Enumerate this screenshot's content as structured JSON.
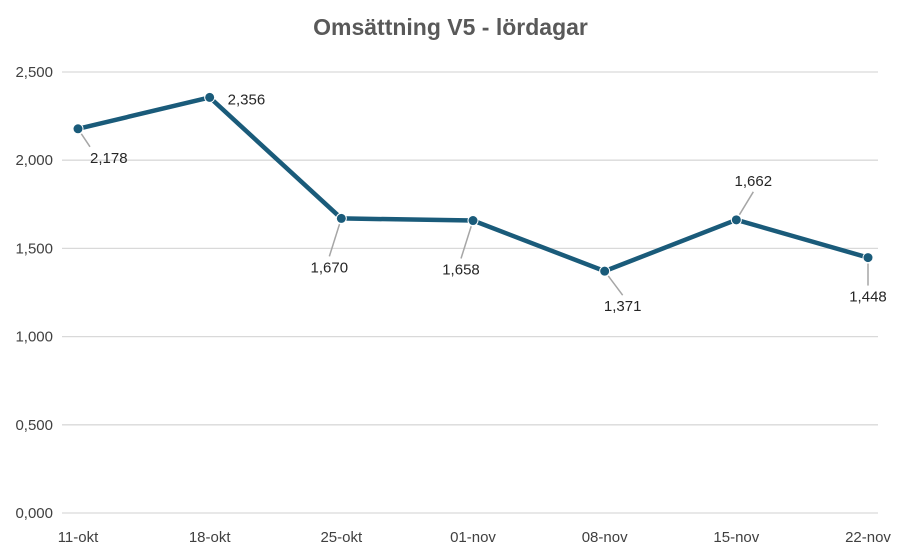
{
  "chart_data": {
    "type": "line",
    "title": "Omsättning V5 - lördagar",
    "xlabel": "",
    "ylabel": "",
    "categories": [
      "11-okt",
      "18-okt",
      "25-okt",
      "01-nov",
      "08-nov",
      "15-nov",
      "22-nov"
    ],
    "series": [
      {
        "values": [
          2178,
          2356,
          1670,
          1658,
          1371,
          1662,
          1448
        ],
        "labels": [
          "2,178",
          "2,356",
          "1,670",
          "1,658",
          "1,371",
          "1,662",
          "1,448"
        ],
        "color": "#1a5b7a"
      }
    ],
    "ylim": [
      0,
      2500
    ],
    "yticks": [
      0,
      500,
      1000,
      1500,
      2000,
      2500
    ],
    "ytick_labels": [
      "0,000",
      "0,500",
      "1,000",
      "1,500",
      "2,000",
      "2,500"
    ],
    "grid": true,
    "legend": false,
    "leader_line_color": "#a6a6a6",
    "gridline_color": "#d9d9d9"
  }
}
